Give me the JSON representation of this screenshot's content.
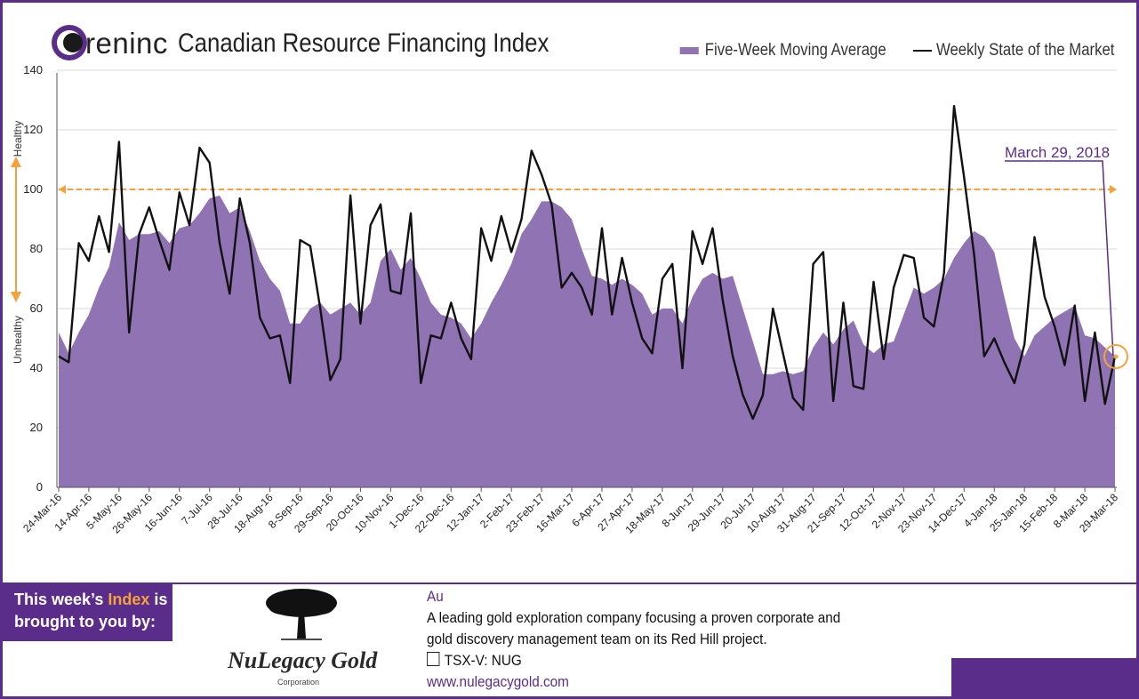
{
  "header": {
    "brand": "reninc",
    "title": "Canadian Resource Financing Index"
  },
  "legend": {
    "area_label": "Five-Week Moving Average",
    "line_label": "Weekly State of the Market"
  },
  "annotation": {
    "label": "March 29, 2018"
  },
  "zones": {
    "healthy": "Healthy",
    "unhealthy": "Unhealthy"
  },
  "colors": {
    "area": "#8f73b3",
    "line": "#111111",
    "accent": "#f5a13c",
    "brand": "#5b2d8a"
  },
  "chart_data": {
    "type": "line",
    "ylim": [
      0,
      140
    ],
    "yticks": [
      0,
      20,
      40,
      60,
      80,
      100,
      120,
      140
    ],
    "reference_line": 100,
    "xtick_labels": [
      "24-Mar-16",
      "14-Apr-16",
      "5-May-16",
      "26-May-16",
      "16-Jun-16",
      "7-Jul-16",
      "28-Jul-16",
      "18-Aug-16",
      "8-Sep-16",
      "29-Sep-16",
      "20-Oct-16",
      "10-Nov-16",
      "1-Dec-16",
      "22-Dec-16",
      "12-Jan-17",
      "2-Feb-17",
      "23-Feb-17",
      "16-Mar-17",
      "6-Apr-17",
      "27-Apr-17",
      "18-May-17",
      "8-Jun-17",
      "29-Jun-17",
      "20-Jul-17",
      "10-Aug-17",
      "31-Aug-17",
      "21-Sep-17",
      "12-Oct-17",
      "2-Nov-17",
      "23-Nov-17",
      "14-Dec-17",
      "4-Jan-18",
      "25-Jan-18",
      "15-Feb-18",
      "8-Mar-18",
      "29-Mar-18"
    ],
    "series": [
      {
        "name": "Weekly State of the Market",
        "values": [
          44,
          42,
          82,
          76,
          91,
          79,
          116,
          52,
          85,
          94,
          83,
          73,
          99,
          88,
          114,
          109,
          82,
          65,
          97,
          82,
          57,
          50,
          51,
          35,
          83,
          81,
          60,
          36,
          43,
          98,
          55,
          88,
          95,
          66,
          65,
          92,
          35,
          51,
          50,
          62,
          50,
          43,
          87,
          76,
          91,
          79,
          90,
          113,
          105,
          95,
          67,
          72,
          67,
          58,
          87,
          58,
          77,
          62,
          50,
          45,
          70,
          75,
          40,
          86,
          75,
          87,
          63,
          44,
          31,
          23,
          31,
          60,
          45,
          30,
          26,
          75,
          79,
          29,
          62,
          34,
          33,
          69,
          43,
          67,
          78,
          77,
          57,
          54,
          72,
          128,
          104,
          78,
          44,
          50,
          42,
          35,
          48,
          84,
          64,
          54,
          41,
          61,
          29,
          52,
          28,
          44
        ]
      },
      {
        "name": "Five-Week Moving Average",
        "values": [
          52,
          45,
          52,
          58,
          67,
          74,
          89,
          83,
          85,
          85,
          86,
          82,
          87,
          88,
          92,
          97,
          98,
          92,
          94,
          86,
          76,
          70,
          66,
          55,
          55,
          60,
          62,
          58,
          60,
          62,
          58,
          62,
          76,
          80,
          73,
          77,
          70,
          62,
          58,
          57,
          55,
          50,
          55,
          62,
          68,
          75,
          85,
          90,
          96,
          96,
          94,
          90,
          80,
          71,
          70,
          68,
          70,
          68,
          65,
          58,
          60,
          60,
          55,
          64,
          70,
          72,
          70,
          71,
          60,
          49,
          38,
          38,
          39,
          38,
          39,
          47,
          52,
          48,
          53,
          56,
          48,
          45,
          48,
          49,
          58,
          67,
          65,
          67,
          70,
          77,
          82,
          86,
          84,
          79,
          64,
          50,
          44,
          51,
          54,
          57,
          59,
          61,
          51,
          50,
          47,
          44
        ]
      }
    ]
  }
}
